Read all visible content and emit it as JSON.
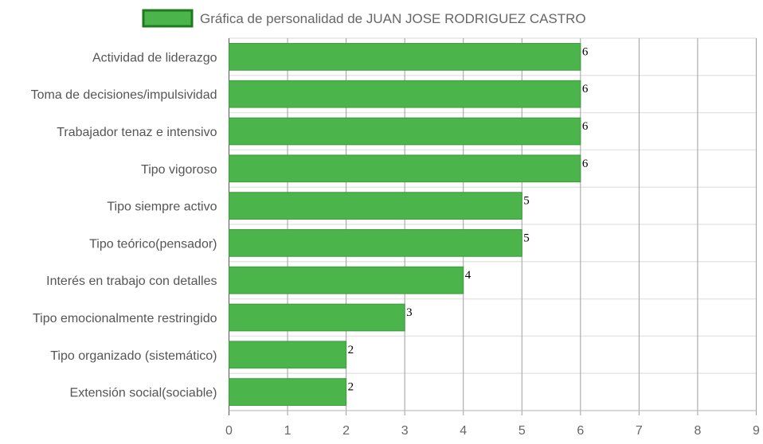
{
  "chart_data": {
    "type": "bar",
    "orientation": "horizontal",
    "title": "",
    "legend": {
      "label": "Gráfica de personalidad de JUAN JOSE RODRIGUEZ CASTRO",
      "position": "top"
    },
    "categories": [
      "Actividad de liderazgo",
      "Toma de decisiones/impulsividad",
      "Trabajador tenaz e intensivo",
      "Tipo vigoroso",
      "Tipo siempre activo",
      "Tipo teórico(pensador)",
      "Interés en trabajo con detalles",
      "Tipo emocionalmente restringido",
      "Tipo organizado (sistemático)",
      "Extensión social(sociable)"
    ],
    "series": [
      {
        "name": "Gráfica de personalidad de JUAN JOSE RODRIGUEZ CASTRO",
        "values": [
          6,
          6,
          6,
          6,
          5,
          5,
          4,
          3,
          2,
          2
        ]
      }
    ],
    "xlim": [
      0,
      9
    ],
    "xticks": [
      "0",
      "1",
      "2",
      "3",
      "4",
      "5",
      "6",
      "7",
      "8",
      "9"
    ],
    "grid": true,
    "colors": {
      "bar_fill": "#4bb54b",
      "bar_border": "#3a9a3a",
      "legend_border": "#1f7a1f",
      "grid": "#e6e6e6",
      "grid_major": "#9e9e9e"
    }
  }
}
